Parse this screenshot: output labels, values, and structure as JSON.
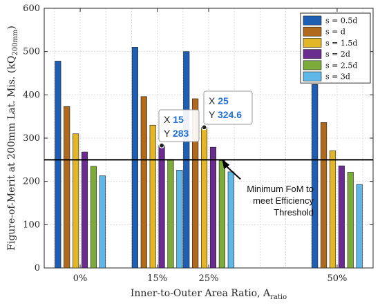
{
  "chart_data": {
    "type": "bar",
    "categories": [
      "0%",
      "15%",
      "25%",
      "50%"
    ],
    "x": [
      0,
      15,
      25,
      50
    ],
    "xlabel": "Inner-to-Outer Area Ratio, A",
    "xlabel_sub": "ratio",
    "ylabel": "Figure-of-Merit at 200mm Lat. Mis. (kQ",
    "ylabel_sub": "200mm",
    "ylabel_end": ")",
    "ylim": [
      0,
      600
    ],
    "yticks": [
      "0",
      "100",
      "200",
      "300",
      "400",
      "500",
      "600"
    ],
    "grid": true,
    "legend_position": "top-right",
    "series": [
      {
        "name": "s = 0.5d",
        "color": "#1f5fb3",
        "values": [
          478,
          510,
          500,
          424
        ]
      },
      {
        "name": "s = d",
        "color": "#b06a1e",
        "values": [
          373,
          396,
          391,
          336
        ]
      },
      {
        "name": "s = 1.5d",
        "color": "#e3b62a",
        "values": [
          310,
          330,
          325,
          271
        ]
      },
      {
        "name": "s = 2d",
        "color": "#6a2d8f",
        "values": [
          268,
          283,
          279,
          236
        ]
      },
      {
        "name": "s = 2.5d",
        "color": "#7cab3a",
        "values": [
          235,
          251,
          248,
          221
        ]
      },
      {
        "name": "s = 3d",
        "color": "#5fb7e8",
        "values": [
          213,
          226,
          222,
          193
        ]
      }
    ],
    "threshold": {
      "value": 250,
      "label_lines": [
        "Minimum FoM to",
        "meet Efficiency",
        "Threshold"
      ]
    },
    "datatips": [
      {
        "x_label": "X",
        "x_value": "15",
        "y_label": "Y",
        "y_value": "283",
        "category": 1,
        "series": 3
      },
      {
        "x_label": "X",
        "x_value": "25",
        "y_label": "Y",
        "y_value": "324.6",
        "category": 2,
        "series": 2
      }
    ]
  }
}
